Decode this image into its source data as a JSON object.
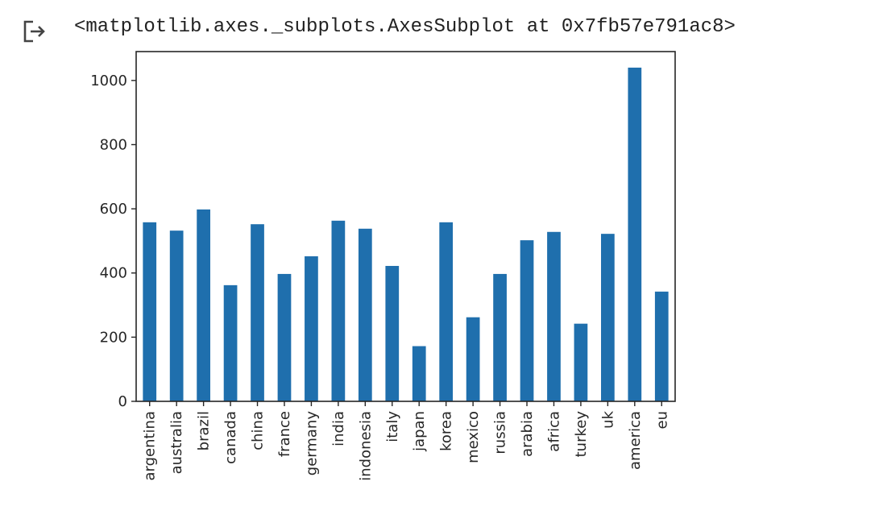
{
  "output": {
    "icon": "output-arrow-icon",
    "text": "<matplotlib.axes._subplots.AxesSubplot at 0x7fb57e791ac8>"
  },
  "chart_data": {
    "type": "bar",
    "categories": [
      "argentina",
      "australia",
      "brazil",
      "canada",
      "china",
      "france",
      "germany",
      "india",
      "indonesia",
      "italy",
      "japan",
      "korea",
      "mexico",
      "russia",
      "arabia",
      "africa",
      "turkey",
      "uk",
      "america",
      "eu"
    ],
    "values": [
      558,
      532,
      598,
      362,
      552,
      397,
      452,
      563,
      538,
      422,
      172,
      558,
      262,
      397,
      502,
      528,
      242,
      522,
      1040,
      342
    ],
    "ylim": [
      0,
      1090
    ],
    "yticks": [
      0,
      200,
      400,
      600,
      800,
      1000
    ],
    "color": "#1f6fad",
    "grid": false,
    "legend": false
  }
}
